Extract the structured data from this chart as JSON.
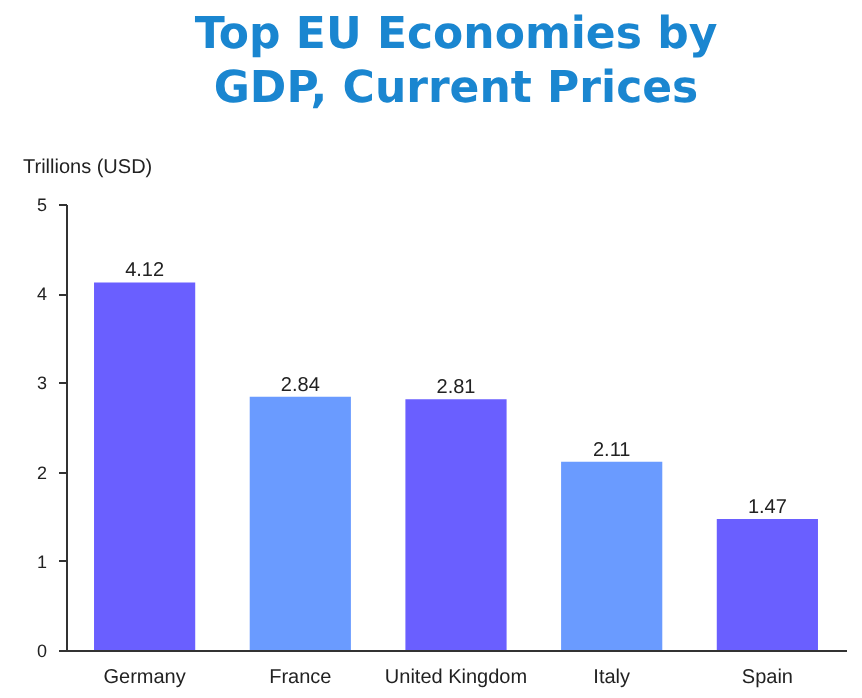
{
  "chart_data": {
    "type": "bar",
    "title": "Top EU Economies by GDP, Current Prices",
    "ylabel": "Trillions (USD)",
    "categories": [
      "Germany",
      "France",
      "United Kingdom",
      "Italy",
      "Spain"
    ],
    "values": [
      4.12,
      2.84,
      2.81,
      2.11,
      1.47
    ],
    "colors": [
      "#6a5fff",
      "#6a9bff",
      "#6a5fff",
      "#6a9bff",
      "#6a5fff"
    ],
    "ylim": [
      0,
      5
    ],
    "yticks": [
      0,
      1,
      2,
      3,
      4,
      5
    ],
    "grid": false,
    "data_labels": true
  }
}
